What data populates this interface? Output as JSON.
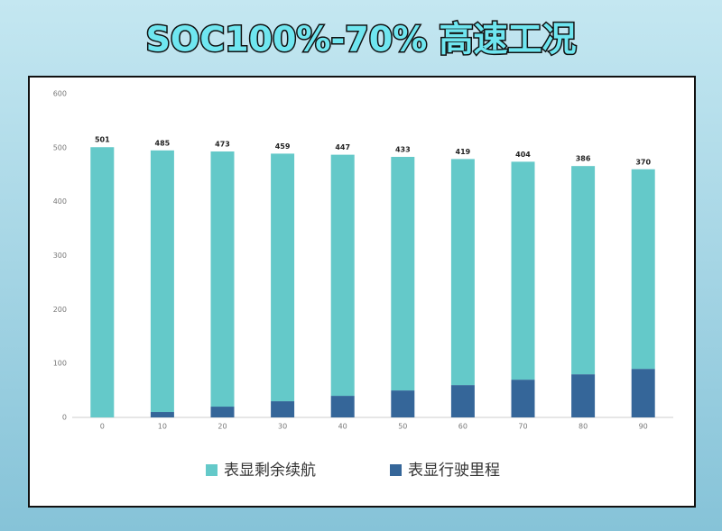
{
  "chart_data": {
    "type": "stacked-bar",
    "title": "SOC100%-70% 高速工况",
    "categories": [
      "0",
      "10",
      "20",
      "30",
      "40",
      "50",
      "60",
      "70",
      "80",
      "90"
    ],
    "series": [
      {
        "name": "表显行驶里程",
        "color": "#356699",
        "values": [
          0,
          10,
          20,
          30,
          40,
          50,
          60,
          70,
          80,
          90
        ]
      },
      {
        "name": "表显剩余续航",
        "color": "#64c9c9",
        "values": [
          501,
          485,
          473,
          459,
          447,
          433,
          419,
          404,
          386,
          370
        ]
      }
    ],
    "ylim": [
      0,
      600
    ],
    "yticks": [
      0,
      100,
      200,
      300,
      400,
      500,
      600
    ],
    "grid": false,
    "legend": "bottom"
  }
}
